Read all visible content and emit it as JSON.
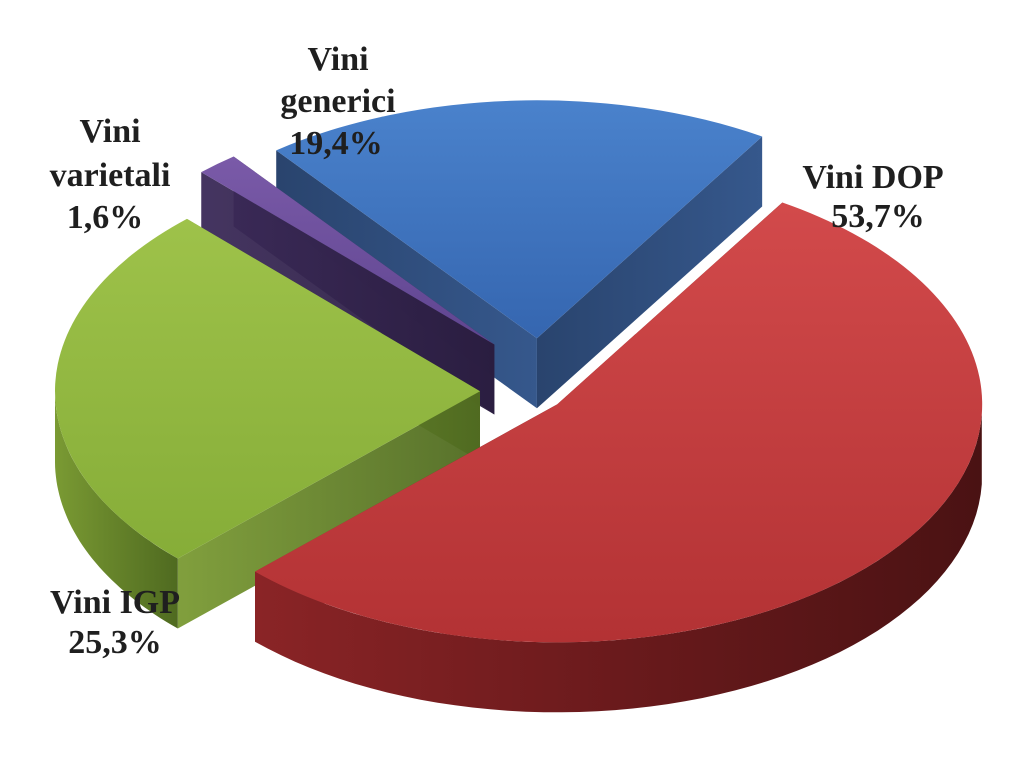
{
  "chart_data": {
    "type": "pie",
    "title": "",
    "three_d": true,
    "exploded": true,
    "slices": [
      {
        "name": "Vini DOP",
        "label_lines": [
          "Vini DOP"
        ],
        "value": 53.7,
        "value_label": "53,7%",
        "color": "#c0383a"
      },
      {
        "name": "Vini IGP",
        "label_lines": [
          "Vini IGP"
        ],
        "value": 25.3,
        "value_label": "25,3%",
        "color": "#8fb53f"
      },
      {
        "name": "Vini varietali",
        "label_lines": [
          "Vini",
          "varietali"
        ],
        "value": 1.6,
        "value_label": "1,6%",
        "color": "#6a4d99"
      },
      {
        "name": "Vini generici",
        "label_lines": [
          "Vini",
          "generici"
        ],
        "value": 19.4,
        "value_label": "19,4%",
        "color": "#3a6fbe"
      }
    ]
  }
}
